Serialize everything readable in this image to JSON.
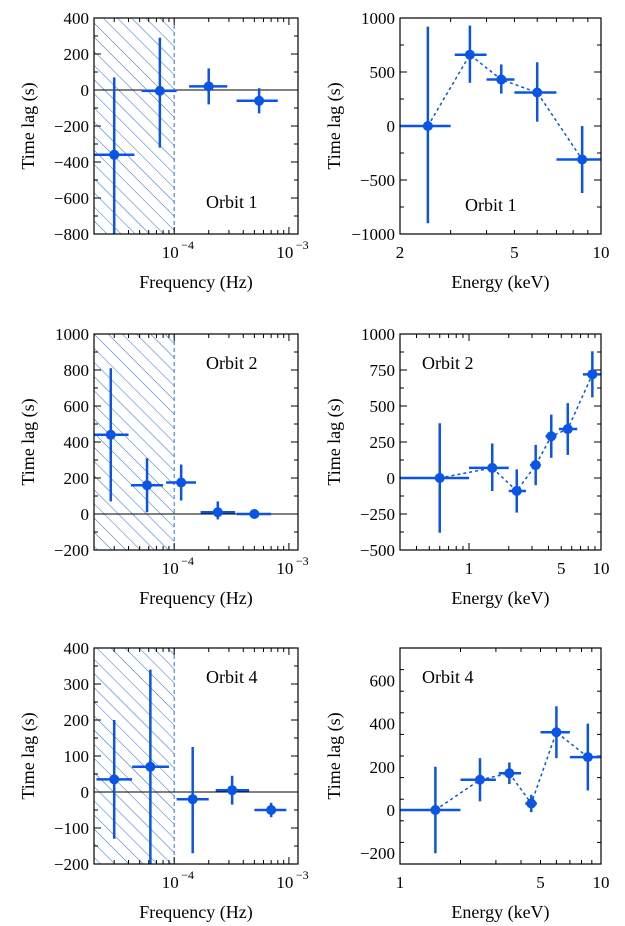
{
  "chart_data": [
    {
      "id": "freq-orbit1",
      "type": "scatter",
      "xscale": "log",
      "xlim": [
        2e-05,
        0.0012
      ],
      "ylim": [
        -800,
        400
      ],
      "xlabel": "Frequency (Hz)",
      "ylabel": "Time lag (s)",
      "annotation": "Orbit 1",
      "zero_line": true,
      "hatch_upto_x": 0.0001,
      "connect": false,
      "yticks": [
        "−800",
        "−600",
        "−400",
        "−200",
        "0",
        "200",
        "400"
      ],
      "ytick_values": [
        -800,
        -600,
        -400,
        -200,
        0,
        200,
        400
      ],
      "xticks": [
        {
          "value": 0.0001,
          "base": "10",
          "exp": "−4"
        },
        {
          "value": 0.001,
          "base": "10",
          "exp": "−3"
        }
      ],
      "points": [
        {
          "x": 3e-05,
          "xlo": 2e-05,
          "xhi": 4.5e-05,
          "y": -360,
          "ylo": -800,
          "yhi": 70
        },
        {
          "x": 7.5e-05,
          "xlo": 5.2e-05,
          "xhi": 0.000105,
          "y": -5,
          "ylo": -320,
          "yhi": 290
        },
        {
          "x": 0.0002,
          "xlo": 0.000135,
          "xhi": 0.00029,
          "y": 20,
          "ylo": -80,
          "yhi": 120
        },
        {
          "x": 0.00055,
          "xlo": 0.00035,
          "xhi": 0.0008,
          "y": -60,
          "ylo": -130,
          "yhi": 10
        }
      ]
    },
    {
      "id": "energy-orbit1",
      "type": "scatter",
      "xscale": "log",
      "xlim": [
        2,
        10
      ],
      "ylim": [
        -1000,
        1000
      ],
      "xlabel": "Energy (keV)",
      "ylabel": "Time lag (s)",
      "annotation": "Orbit 1",
      "zero_line": false,
      "connect": true,
      "yticks": [
        "−1000",
        "−500",
        "0",
        "500",
        "1000"
      ],
      "ytick_values": [
        -1000,
        -500,
        0,
        500,
        1000
      ],
      "xticks": [
        {
          "value": 2,
          "label": "2"
        },
        {
          "value": 5,
          "label": "5"
        },
        {
          "value": 10,
          "label": "10"
        }
      ],
      "points": [
        {
          "x": 2.5,
          "xlo": 2.0,
          "xhi": 3.0,
          "y": 0,
          "ylo": -900,
          "yhi": 920
        },
        {
          "x": 3.5,
          "xlo": 3.1,
          "xhi": 4.0,
          "y": 660,
          "ylo": 400,
          "yhi": 930
        },
        {
          "x": 4.5,
          "xlo": 4.0,
          "xhi": 5.0,
          "y": 430,
          "ylo": 300,
          "yhi": 570
        },
        {
          "x": 6.0,
          "xlo": 5.0,
          "xhi": 7.0,
          "y": 310,
          "ylo": 40,
          "yhi": 590
        },
        {
          "x": 8.6,
          "xlo": 7.0,
          "xhi": 10.0,
          "y": -310,
          "ylo": -620,
          "yhi": 0
        }
      ]
    },
    {
      "id": "freq-orbit2",
      "type": "scatter",
      "xscale": "log",
      "xlim": [
        2e-05,
        0.0012
      ],
      "ylim": [
        -200,
        1000
      ],
      "xlabel": "Frequency (Hz)",
      "ylabel": "Time lag (s)",
      "annotation": "Orbit 2",
      "zero_line": true,
      "hatch_upto_x": 0.0001,
      "connect": false,
      "yticks": [
        "−200",
        "0",
        "200",
        "400",
        "600",
        "800",
        "1000"
      ],
      "ytick_values": [
        -200,
        0,
        200,
        400,
        600,
        800,
        1000
      ],
      "xticks": [
        {
          "value": 0.0001,
          "base": "10",
          "exp": "−4"
        },
        {
          "value": 0.001,
          "base": "10",
          "exp": "−3"
        }
      ],
      "points": [
        {
          "x": 2.8e-05,
          "xlo": 2e-05,
          "xhi": 4e-05,
          "y": 440,
          "ylo": 70,
          "yhi": 810
        },
        {
          "x": 5.8e-05,
          "xlo": 4.2e-05,
          "xhi": 8e-05,
          "y": 160,
          "ylo": 10,
          "yhi": 310
        },
        {
          "x": 0.000115,
          "xlo": 8.5e-05,
          "xhi": 0.000155,
          "y": 175,
          "ylo": 75,
          "yhi": 275
        },
        {
          "x": 0.00024,
          "xlo": 0.00017,
          "xhi": 0.00034,
          "y": 10,
          "ylo": -30,
          "yhi": 70
        },
        {
          "x": 0.0005,
          "xlo": 0.00035,
          "xhi": 0.0007,
          "y": 0,
          "ylo": -10,
          "yhi": 10
        }
      ]
    },
    {
      "id": "energy-orbit2",
      "type": "scatter",
      "xscale": "log",
      "xlim": [
        0.3,
        10
      ],
      "ylim": [
        -500,
        1000
      ],
      "xlabel": "Energy (keV)",
      "ylabel": "Time lag (s)",
      "annotation": "Orbit 2",
      "zero_line": false,
      "connect": true,
      "yticks": [
        "−500",
        "−250",
        "0",
        "250",
        "500",
        "750",
        "1000"
      ],
      "ytick_values": [
        -500,
        -250,
        0,
        250,
        500,
        750,
        1000
      ],
      "xticks": [
        {
          "value": 1,
          "label": "1"
        },
        {
          "value": 5,
          "label": "5"
        },
        {
          "value": 10,
          "label": "10"
        }
      ],
      "points": [
        {
          "x": 0.6,
          "xlo": 0.3,
          "xhi": 1.0,
          "y": 0,
          "ylo": -380,
          "yhi": 380
        },
        {
          "x": 1.5,
          "xlo": 1.0,
          "xhi": 2.0,
          "y": 70,
          "ylo": -90,
          "yhi": 240
        },
        {
          "x": 2.3,
          "xlo": 2.0,
          "xhi": 2.7,
          "y": -90,
          "ylo": -240,
          "yhi": 60
        },
        {
          "x": 3.2,
          "xlo": 2.9,
          "xhi": 3.5,
          "y": 90,
          "ylo": -50,
          "yhi": 230
        },
        {
          "x": 4.2,
          "xlo": 3.8,
          "xhi": 4.6,
          "y": 290,
          "ylo": 140,
          "yhi": 440
        },
        {
          "x": 5.6,
          "xlo": 4.8,
          "xhi": 6.6,
          "y": 340,
          "ylo": 160,
          "yhi": 520
        },
        {
          "x": 8.6,
          "xlo": 7.3,
          "xhi": 10.0,
          "y": 720,
          "ylo": 560,
          "yhi": 880
        }
      ]
    },
    {
      "id": "freq-orbit4",
      "type": "scatter",
      "xscale": "log",
      "xlim": [
        2e-05,
        0.0012
      ],
      "ylim": [
        -200,
        400
      ],
      "xlabel": "Frequency (Hz)",
      "ylabel": "Time lag (s)",
      "annotation": "Orbit 4",
      "zero_line": true,
      "hatch_upto_x": 0.0001,
      "connect": false,
      "yticks": [
        "−200",
        "−100",
        "0",
        "100",
        "200",
        "300",
        "400"
      ],
      "ytick_values": [
        -200,
        -100,
        0,
        100,
        200,
        300,
        400
      ],
      "xticks": [
        {
          "value": 0.0001,
          "base": "10",
          "exp": "−4"
        },
        {
          "value": 0.001,
          "base": "10",
          "exp": "−3"
        }
      ],
      "points": [
        {
          "x": 3e-05,
          "xlo": 2.1e-05,
          "xhi": 4.3e-05,
          "y": 35,
          "ylo": -130,
          "yhi": 200
        },
        {
          "x": 6.2e-05,
          "xlo": 4.3e-05,
          "xhi": 9e-05,
          "y": 70,
          "ylo": -200,
          "yhi": 340
        },
        {
          "x": 0.000145,
          "xlo": 0.000105,
          "xhi": 0.0002,
          "y": -20,
          "ylo": -170,
          "yhi": 125
        },
        {
          "x": 0.00032,
          "xlo": 0.00023,
          "xhi": 0.00045,
          "y": 5,
          "ylo": -35,
          "yhi": 45
        },
        {
          "x": 0.0007,
          "xlo": 0.0005,
          "xhi": 0.00095,
          "y": -50,
          "ylo": -70,
          "yhi": -30
        }
      ]
    },
    {
      "id": "energy-orbit4",
      "type": "scatter",
      "xscale": "log",
      "xlim": [
        1,
        10
      ],
      "ylim": [
        -250,
        750
      ],
      "xlabel": "Energy (keV)",
      "ylabel": "Time lag (s)",
      "annotation": "Orbit 4",
      "zero_line": false,
      "connect": true,
      "yticks": [
        "−200",
        "0",
        "200",
        "400",
        "600"
      ],
      "ytick_values": [
        -200,
        0,
        200,
        400,
        600
      ],
      "xticks": [
        {
          "value": 1,
          "label": "1"
        },
        {
          "value": 5,
          "label": "5"
        },
        {
          "value": 10,
          "label": "10"
        }
      ],
      "points": [
        {
          "x": 1.5,
          "xlo": 1.0,
          "xhi": 2.0,
          "y": 0,
          "ylo": -200,
          "yhi": 200
        },
        {
          "x": 2.5,
          "xlo": 2.0,
          "xhi": 3.0,
          "y": 140,
          "ylo": 40,
          "yhi": 240
        },
        {
          "x": 3.5,
          "xlo": 3.1,
          "xhi": 4.0,
          "y": 170,
          "ylo": 120,
          "yhi": 220
        },
        {
          "x": 4.5,
          "xlo": 4.2,
          "xhi": 4.8,
          "y": 30,
          "ylo": -10,
          "yhi": 70
        },
        {
          "x": 6.0,
          "xlo": 5.0,
          "xhi": 7.0,
          "y": 360,
          "ylo": 240,
          "yhi": 480
        },
        {
          "x": 8.6,
          "xlo": 7.0,
          "xhi": 10.0,
          "y": 245,
          "ylo": 90,
          "yhi": 400
        }
      ]
    }
  ],
  "colors": {
    "series": "#0a55e6",
    "axis": "#000000",
    "hatch": "#2a6fe8"
  }
}
